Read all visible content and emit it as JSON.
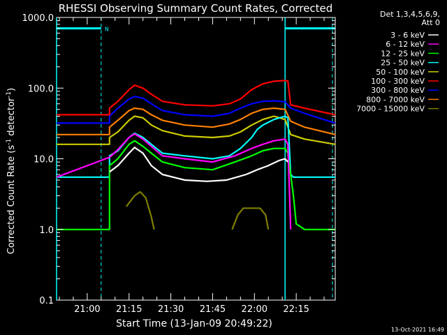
{
  "chart_data": {
    "type": "line",
    "title": "RHESSI Observing Summary Count Rates, Corrected",
    "xlabel": "Start Time (13-Jan-09 20:49:22)",
    "ylabel_prefix": "Corrected Count Rate (s",
    "ylabel_exp": "-1",
    "ylabel_mid": " detector",
    "ylabel_exp2": "-1",
    "ylabel_suffix": ")",
    "yscale": "log",
    "ylim": [
      0.1,
      1000.0
    ],
    "xlim_min": [
      -6,
      94
    ],
    "x_unit": "minutes after 20:55",
    "y_ticks": [
      {
        "value": 0.1,
        "label": "0.1"
      },
      {
        "value": 1.0,
        "label": "1.0"
      },
      {
        "value": 10.0,
        "label": "10.0"
      },
      {
        "value": 100.0,
        "label": "100.0"
      },
      {
        "value": 1000.0,
        "label": "1000.0"
      }
    ],
    "x_ticks": [
      {
        "value": 5,
        "label": "21:00"
      },
      {
        "value": 20,
        "label": "21:15"
      },
      {
        "value": 35,
        "label": "21:30"
      },
      {
        "value": 50,
        "label": "21:45"
      },
      {
        "value": 65,
        "label": "22:00"
      },
      {
        "value": 80,
        "label": "22:15"
      }
    ],
    "legend": {
      "header": [
        "Det 1,3,4,5,6,9,",
        "Att 0"
      ],
      "placement": "right"
    },
    "series": [
      {
        "name": "3 - 6 keV",
        "color": "#ffffff",
        "points": [
          [
            13,
            6.5
          ],
          [
            16,
            8
          ],
          [
            20,
            12
          ],
          [
            22,
            14.5
          ],
          [
            25,
            12
          ],
          [
            28,
            8
          ],
          [
            32,
            6
          ],
          [
            40,
            5
          ],
          [
            48,
            4.8
          ],
          [
            55,
            5
          ],
          [
            62,
            6
          ],
          [
            66,
            7
          ],
          [
            70,
            8
          ],
          [
            74,
            9.5
          ],
          [
            76,
            10
          ],
          [
            77,
            9
          ],
          [
            77.5,
            null
          ]
        ]
      },
      {
        "name": "6 - 12 keV",
        "color": "#ff00ff",
        "points": [
          [
            -6,
            5.5
          ],
          [
            13,
            10.5
          ],
          [
            16,
            13.5
          ],
          [
            20,
            20
          ],
          [
            22,
            22.5
          ],
          [
            25,
            19
          ],
          [
            28,
            15
          ],
          [
            32,
            11
          ],
          [
            40,
            10
          ],
          [
            50,
            9
          ],
          [
            58,
            11
          ],
          [
            64,
            14
          ],
          [
            68,
            16
          ],
          [
            72,
            18
          ],
          [
            76,
            19
          ],
          [
            77,
            16
          ],
          [
            78,
            1.0
          ],
          [
            79,
            null
          ]
        ]
      },
      {
        "name": "12 - 25 keV",
        "color": "#00ff00",
        "points": [
          [
            -6,
            1.0
          ],
          [
            13,
            1.0
          ],
          [
            13,
            8
          ],
          [
            16,
            10
          ],
          [
            20,
            16
          ],
          [
            22,
            18
          ],
          [
            25,
            15
          ],
          [
            28,
            12
          ],
          [
            32,
            9
          ],
          [
            40,
            7.5
          ],
          [
            50,
            7
          ],
          [
            58,
            9
          ],
          [
            64,
            11
          ],
          [
            68,
            13
          ],
          [
            72,
            14
          ],
          [
            76,
            14
          ],
          [
            77,
            12
          ],
          [
            79,
            3
          ],
          [
            80,
            1.2
          ],
          [
            83,
            1.0
          ],
          [
            94,
            1.0
          ]
        ]
      },
      {
        "name": "25 - 50 keV",
        "color": "#00ffff",
        "points": [
          [
            -6,
            5.5
          ],
          [
            13,
            5.5
          ],
          [
            13,
            11
          ],
          [
            16,
            13
          ],
          [
            20,
            20
          ],
          [
            22,
            23
          ],
          [
            25,
            20
          ],
          [
            28,
            16
          ],
          [
            32,
            12
          ],
          [
            40,
            11
          ],
          [
            50,
            10
          ],
          [
            56,
            11
          ],
          [
            60,
            14
          ],
          [
            64,
            20
          ],
          [
            66,
            26
          ],
          [
            68,
            30
          ],
          [
            72,
            36
          ],
          [
            76,
            40
          ],
          [
            77,
            38
          ],
          [
            78,
            6
          ],
          [
            79,
            5.5
          ],
          [
            94,
            5.5
          ]
        ]
      },
      {
        "name": "50 - 100 keV",
        "color": "#cccc00",
        "points": [
          [
            -6,
            16
          ],
          [
            13,
            16
          ],
          [
            13,
            20
          ],
          [
            16,
            24
          ],
          [
            20,
            35
          ],
          [
            22,
            40
          ],
          [
            25,
            38
          ],
          [
            28,
            30
          ],
          [
            32,
            25
          ],
          [
            40,
            21
          ],
          [
            50,
            20
          ],
          [
            56,
            21
          ],
          [
            60,
            24
          ],
          [
            64,
            30
          ],
          [
            68,
            36
          ],
          [
            72,
            40
          ],
          [
            76,
            36
          ],
          [
            78,
            22
          ],
          [
            83,
            19
          ],
          [
            94,
            16
          ]
        ]
      },
      {
        "name": "100 - 300 keV",
        "color": "#ff0000",
        "points": [
          [
            -6,
            42
          ],
          [
            13,
            42
          ],
          [
            13,
            52
          ],
          [
            16,
            65
          ],
          [
            20,
            95
          ],
          [
            22,
            110
          ],
          [
            25,
            100
          ],
          [
            28,
            82
          ],
          [
            32,
            65
          ],
          [
            40,
            58
          ],
          [
            50,
            56
          ],
          [
            56,
            60
          ],
          [
            60,
            70
          ],
          [
            64,
            95
          ],
          [
            68,
            115
          ],
          [
            72,
            125
          ],
          [
            76,
            128
          ],
          [
            77,
            126
          ],
          [
            78,
            58
          ],
          [
            83,
            52
          ],
          [
            94,
            42
          ]
        ]
      },
      {
        "name": "300 - 800 keV",
        "color": "#0000ff",
        "points": [
          [
            -6,
            32
          ],
          [
            13,
            32
          ],
          [
            13,
            40
          ],
          [
            16,
            52
          ],
          [
            20,
            70
          ],
          [
            22,
            76
          ],
          [
            25,
            72
          ],
          [
            28,
            60
          ],
          [
            32,
            48
          ],
          [
            40,
            42
          ],
          [
            50,
            40
          ],
          [
            56,
            44
          ],
          [
            60,
            52
          ],
          [
            64,
            60
          ],
          [
            68,
            65
          ],
          [
            72,
            66
          ],
          [
            76,
            64
          ],
          [
            78,
            52
          ],
          [
            83,
            44
          ],
          [
            94,
            32
          ]
        ]
      },
      {
        "name": "800 - 7000 keV",
        "color": "#ff8000",
        "points": [
          [
            -6,
            22
          ],
          [
            13,
            22
          ],
          [
            13,
            28
          ],
          [
            16,
            35
          ],
          [
            20,
            48
          ],
          [
            22,
            52
          ],
          [
            25,
            50
          ],
          [
            28,
            42
          ],
          [
            32,
            35
          ],
          [
            40,
            30
          ],
          [
            50,
            28
          ],
          [
            56,
            31
          ],
          [
            60,
            36
          ],
          [
            64,
            44
          ],
          [
            68,
            50
          ],
          [
            72,
            52
          ],
          [
            76,
            50
          ],
          [
            78,
            34
          ],
          [
            83,
            28
          ],
          [
            94,
            22
          ]
        ]
      },
      {
        "name": "7000 - 15000 keV",
        "color": "#808000",
        "points": [
          [
            19,
            2.1
          ],
          [
            22,
            3
          ],
          [
            24,
            3.4
          ],
          [
            26,
            2.8
          ],
          [
            28,
            1.5
          ],
          [
            29,
            1.0
          ],
          [
            29.5,
            null
          ],
          [
            57,
            1.0
          ],
          [
            59,
            1.6
          ],
          [
            61,
            2.0
          ],
          [
            64,
            2.0
          ],
          [
            67,
            2.0
          ],
          [
            69,
            1.6
          ],
          [
            70,
            1.0
          ]
        ]
      }
    ],
    "attenuator_state": {
      "color": "#00ffff",
      "label": "N",
      "segments": [
        [
          [
            -6,
            700
          ],
          [
            10,
            700
          ]
        ],
        [
          [
            76,
            700
          ],
          [
            94,
            700
          ]
        ]
      ]
    },
    "dashed_markers": {
      "color": "#00ffff",
      "x": [
        10,
        93
      ]
    },
    "solid_markers": {
      "color": "#00ffff",
      "x": [
        -6,
        76
      ]
    }
  },
  "footer": {
    "date": "13-Oct-2021 16:49"
  }
}
